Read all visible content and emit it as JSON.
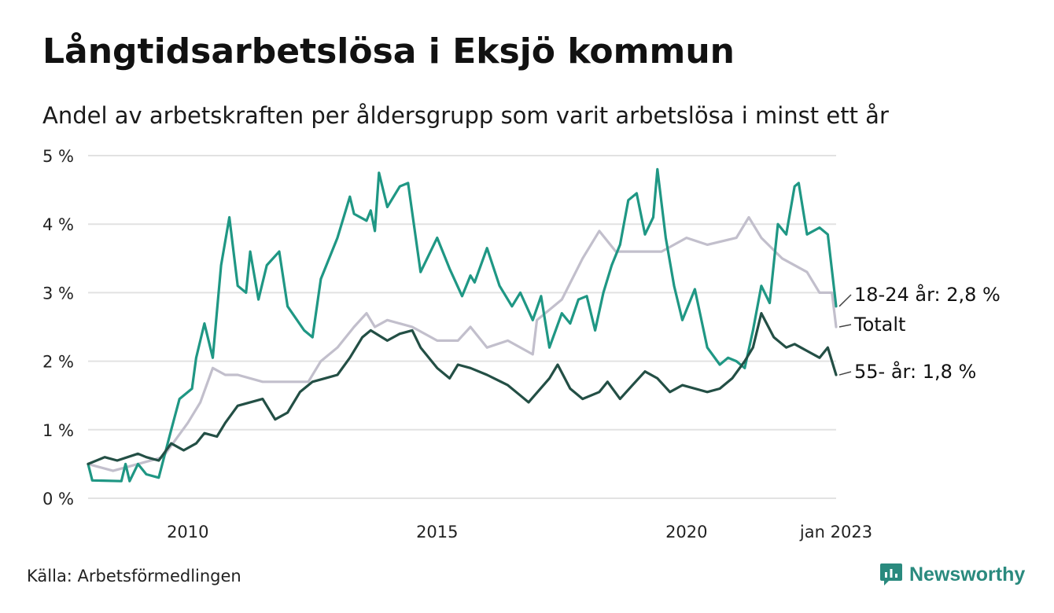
{
  "title": "Långtidsarbetslösa i Eksjö kommun",
  "subtitle": "Andel av arbetskraften per åldersgrupp som varit arbetslösa i minst ett år",
  "source": "Källa: Arbetsförmedlingen",
  "brand": {
    "name": "Newsworthy",
    "icon": "newsworthy-logo-icon",
    "color": "#2a8a7e"
  },
  "chart_data": {
    "type": "line",
    "x_range": [
      "2008-01",
      "2023-01"
    ],
    "ylim": [
      0,
      5
    ],
    "y_ticks": [
      0,
      1,
      2,
      3,
      4,
      5
    ],
    "y_tick_labels": [
      "0 %",
      "1 %",
      "2 %",
      "3 %",
      "4 %",
      "5 %"
    ],
    "x_ticks": [
      "2010-01",
      "2015-01",
      "2020-01",
      "2023-01"
    ],
    "x_tick_labels": [
      "2010",
      "2015",
      "2020",
      "jan 2023"
    ],
    "grid": "horizontal",
    "series": [
      {
        "id": "total",
        "name": "Totalt",
        "end_label": "Totalt",
        "color": "#c2bfcc",
        "points": [
          [
            "2008-01",
            0.5
          ],
          [
            "2008-07",
            0.4
          ],
          [
            "2009-01",
            0.5
          ],
          [
            "2009-07",
            0.6
          ],
          [
            "2010-01",
            1.1
          ],
          [
            "2010-04",
            1.4
          ],
          [
            "2010-07",
            1.9
          ],
          [
            "2010-10",
            1.8
          ],
          [
            "2011-01",
            1.8
          ],
          [
            "2011-07",
            1.7
          ],
          [
            "2012-01",
            1.7
          ],
          [
            "2012-06",
            1.7
          ],
          [
            "2012-09",
            2.0
          ],
          [
            "2013-01",
            2.2
          ],
          [
            "2013-05",
            2.5
          ],
          [
            "2013-08",
            2.7
          ],
          [
            "2013-10",
            2.5
          ],
          [
            "2014-01",
            2.6
          ],
          [
            "2014-07",
            2.5
          ],
          [
            "2015-01",
            2.3
          ],
          [
            "2015-06",
            2.3
          ],
          [
            "2015-09",
            2.5
          ],
          [
            "2016-01",
            2.2
          ],
          [
            "2016-06",
            2.3
          ],
          [
            "2016-12",
            2.1
          ],
          [
            "2017-01",
            2.6
          ],
          [
            "2017-07",
            2.9
          ],
          [
            "2017-12",
            3.5
          ],
          [
            "2018-04",
            3.9
          ],
          [
            "2018-08",
            3.6
          ],
          [
            "2019-01",
            3.6
          ],
          [
            "2019-07",
            3.6
          ],
          [
            "2020-01",
            3.8
          ],
          [
            "2020-06",
            3.7
          ],
          [
            "2021-01",
            3.8
          ],
          [
            "2021-04",
            4.1
          ],
          [
            "2021-07",
            3.8
          ],
          [
            "2021-12",
            3.5
          ],
          [
            "2022-06",
            3.3
          ],
          [
            "2022-09",
            3.0
          ],
          [
            "2022-12",
            3.0
          ],
          [
            "2023-01",
            2.5
          ]
        ]
      },
      {
        "id": "age-18-24",
        "name": "18-24 år",
        "end_label": "18-24 år: 2,8 %",
        "color": "#1f9784",
        "points": [
          [
            "2008-01",
            0.5
          ],
          [
            "2008-02",
            0.26
          ],
          [
            "2008-09",
            0.25
          ],
          [
            "2008-10",
            0.5
          ],
          [
            "2008-11",
            0.25
          ],
          [
            "2009-01",
            0.5
          ],
          [
            "2009-03",
            0.35
          ],
          [
            "2009-06",
            0.3
          ],
          [
            "2009-09",
            1.0
          ],
          [
            "2009-11",
            1.45
          ],
          [
            "2010-02",
            1.6
          ],
          [
            "2010-03",
            2.05
          ],
          [
            "2010-05",
            2.55
          ],
          [
            "2010-07",
            2.05
          ],
          [
            "2010-09",
            3.4
          ],
          [
            "2010-11",
            4.1
          ],
          [
            "2011-01",
            3.1
          ],
          [
            "2011-03",
            3.0
          ],
          [
            "2011-04",
            3.6
          ],
          [
            "2011-06",
            2.9
          ],
          [
            "2011-08",
            3.4
          ],
          [
            "2011-11",
            3.6
          ],
          [
            "2012-01",
            2.8
          ],
          [
            "2012-05",
            2.45
          ],
          [
            "2012-07",
            2.35
          ],
          [
            "2012-09",
            3.2
          ],
          [
            "2013-01",
            3.8
          ],
          [
            "2013-04",
            4.4
          ],
          [
            "2013-05",
            4.15
          ],
          [
            "2013-08",
            4.05
          ],
          [
            "2013-09",
            4.2
          ],
          [
            "2013-10",
            3.9
          ],
          [
            "2013-11",
            4.75
          ],
          [
            "2014-01",
            4.25
          ],
          [
            "2014-04",
            4.55
          ],
          [
            "2014-06",
            4.6
          ],
          [
            "2014-09",
            3.3
          ],
          [
            "2015-01",
            3.8
          ],
          [
            "2015-04",
            3.35
          ],
          [
            "2015-07",
            2.95
          ],
          [
            "2015-09",
            3.25
          ],
          [
            "2015-10",
            3.15
          ],
          [
            "2016-01",
            3.65
          ],
          [
            "2016-04",
            3.1
          ],
          [
            "2016-07",
            2.8
          ],
          [
            "2016-09",
            3.0
          ],
          [
            "2016-12",
            2.6
          ],
          [
            "2017-02",
            2.95
          ],
          [
            "2017-04",
            2.2
          ],
          [
            "2017-07",
            2.7
          ],
          [
            "2017-09",
            2.55
          ],
          [
            "2017-11",
            2.9
          ],
          [
            "2018-01",
            2.95
          ],
          [
            "2018-03",
            2.45
          ],
          [
            "2018-05",
            3.0
          ],
          [
            "2018-07",
            3.4
          ],
          [
            "2018-09",
            3.7
          ],
          [
            "2018-11",
            4.35
          ],
          [
            "2019-01",
            4.45
          ],
          [
            "2019-03",
            3.85
          ],
          [
            "2019-05",
            4.1
          ],
          [
            "2019-06",
            4.8
          ],
          [
            "2019-08",
            3.8
          ],
          [
            "2019-10",
            3.1
          ],
          [
            "2019-12",
            2.6
          ],
          [
            "2020-03",
            3.05
          ],
          [
            "2020-06",
            2.2
          ],
          [
            "2020-09",
            1.95
          ],
          [
            "2020-11",
            2.05
          ],
          [
            "2021-01",
            2.0
          ],
          [
            "2021-03",
            1.9
          ],
          [
            "2021-05",
            2.45
          ],
          [
            "2021-07",
            3.1
          ],
          [
            "2021-09",
            2.85
          ],
          [
            "2021-11",
            4.0
          ],
          [
            "2022-01",
            3.85
          ],
          [
            "2022-03",
            4.55
          ],
          [
            "2022-04",
            4.6
          ],
          [
            "2022-06",
            3.85
          ],
          [
            "2022-09",
            3.95
          ],
          [
            "2022-11",
            3.85
          ],
          [
            "2023-01",
            2.8
          ]
        ]
      },
      {
        "id": "age-55",
        "name": "55- år",
        "end_label": "55- år: 1,8 %",
        "color": "#234f45",
        "points": [
          [
            "2008-01",
            0.5
          ],
          [
            "2008-05",
            0.6
          ],
          [
            "2008-08",
            0.55
          ],
          [
            "2009-01",
            0.65
          ],
          [
            "2009-03",
            0.6
          ],
          [
            "2009-06",
            0.55
          ],
          [
            "2009-09",
            0.8
          ],
          [
            "2009-12",
            0.7
          ],
          [
            "2010-03",
            0.8
          ],
          [
            "2010-05",
            0.95
          ],
          [
            "2010-08",
            0.9
          ],
          [
            "2010-10",
            1.1
          ],
          [
            "2011-01",
            1.35
          ],
          [
            "2011-04",
            1.4
          ],
          [
            "2011-07",
            1.45
          ],
          [
            "2011-10",
            1.15
          ],
          [
            "2012-01",
            1.25
          ],
          [
            "2012-04",
            1.55
          ],
          [
            "2012-07",
            1.7
          ],
          [
            "2012-10",
            1.75
          ],
          [
            "2013-01",
            1.8
          ],
          [
            "2013-04",
            2.05
          ],
          [
            "2013-07",
            2.35
          ],
          [
            "2013-09",
            2.45
          ],
          [
            "2014-01",
            2.3
          ],
          [
            "2014-04",
            2.4
          ],
          [
            "2014-07",
            2.45
          ],
          [
            "2014-09",
            2.2
          ],
          [
            "2015-01",
            1.9
          ],
          [
            "2015-04",
            1.75
          ],
          [
            "2015-06",
            1.95
          ],
          [
            "2015-09",
            1.9
          ],
          [
            "2016-01",
            1.8
          ],
          [
            "2016-06",
            1.65
          ],
          [
            "2016-09",
            1.5
          ],
          [
            "2016-11",
            1.4
          ],
          [
            "2017-04",
            1.75
          ],
          [
            "2017-06",
            1.95
          ],
          [
            "2017-09",
            1.6
          ],
          [
            "2017-12",
            1.45
          ],
          [
            "2018-04",
            1.55
          ],
          [
            "2018-06",
            1.7
          ],
          [
            "2018-09",
            1.45
          ],
          [
            "2018-12",
            1.65
          ],
          [
            "2019-03",
            1.85
          ],
          [
            "2019-06",
            1.75
          ],
          [
            "2019-09",
            1.55
          ],
          [
            "2019-12",
            1.65
          ],
          [
            "2020-06",
            1.55
          ],
          [
            "2020-09",
            1.6
          ],
          [
            "2020-12",
            1.75
          ],
          [
            "2021-03",
            2.0
          ],
          [
            "2021-05",
            2.2
          ],
          [
            "2021-07",
            2.7
          ],
          [
            "2021-10",
            2.35
          ],
          [
            "2022-01",
            2.2
          ],
          [
            "2022-03",
            2.25
          ],
          [
            "2022-06",
            2.15
          ],
          [
            "2022-09",
            2.05
          ],
          [
            "2022-11",
            2.2
          ],
          [
            "2022-12",
            2.0
          ],
          [
            "2023-01",
            1.8
          ]
        ]
      }
    ]
  }
}
